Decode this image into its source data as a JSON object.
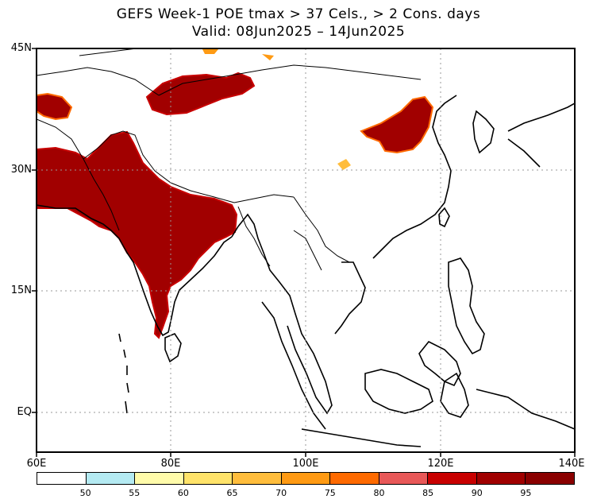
{
  "title": {
    "line1": "GEFS Week-1 POE tmax > 37 Cels., > 2 Cons. days",
    "line2": "Valid: 08Jun2025 – 14Jun2025"
  },
  "map": {
    "lat_labels": [
      "45N",
      "30N",
      "15N",
      "EQ"
    ],
    "lon_labels": [
      "60E",
      "80E",
      "100E",
      "120E",
      "140E"
    ],
    "lat_values": [
      45,
      30,
      15,
      0
    ],
    "lon_values": [
      60,
      80,
      100,
      120,
      140
    ],
    "lon_range": [
      60,
      140
    ],
    "lat_range": [
      -5,
      45
    ],
    "gridlines": "dotted"
  },
  "colorbar": {
    "labels": [
      "50",
      "55",
      "60",
      "65",
      "70",
      "75",
      "80",
      "85",
      "90",
      "95"
    ],
    "colors": [
      "#ffffff",
      "#b4eaf2",
      "#fffbaa",
      "#ffe36a",
      "#ffbd3c",
      "#ff9a13",
      "#fe6a00",
      "#e85858",
      "#c80000",
      "#a00000",
      "#8a0000"
    ]
  },
  "fill_colors": {
    "main": "#a10000",
    "edge1": "#c80000",
    "edge2": "#ff6a00",
    "edge3": "#ffbd3c",
    "edge4": "#ffe36a"
  }
}
